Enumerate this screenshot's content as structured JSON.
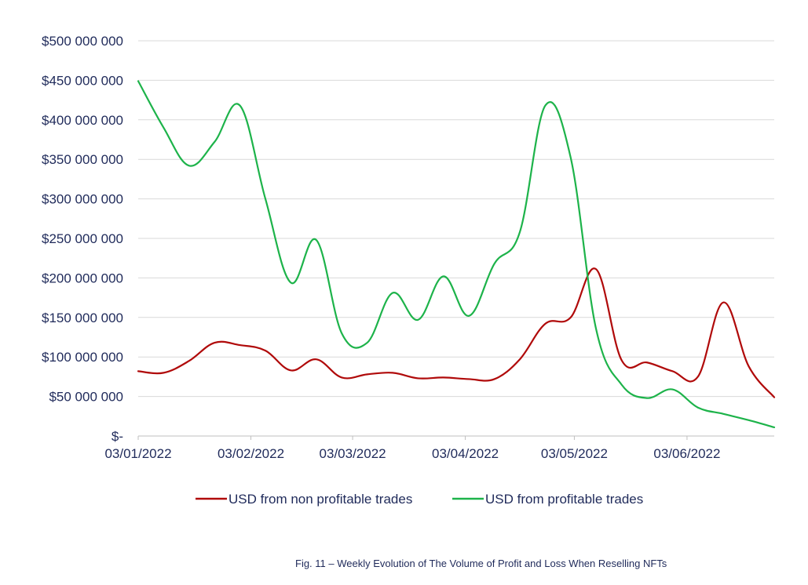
{
  "caption": "Fig. 11 – Weekly Evolution of The Volume of Profit and Loss When Reselling NFTs",
  "chart_data": {
    "type": "line",
    "title": "",
    "xlabel": "",
    "ylabel": "",
    "ylim": [
      0,
      500000000
    ],
    "yticks": [
      0,
      50000000,
      100000000,
      150000000,
      200000000,
      250000000,
      300000000,
      350000000,
      400000000,
      450000000,
      500000000
    ],
    "ytick_labels": [
      "$-",
      "$50 000 000",
      "$100 000 000",
      "$150 000 000",
      "$200 000 000",
      "$250 000 000",
      "$300 000 000",
      "$350 000 000",
      "$400 000 000",
      "$450 000 000",
      "$500 000 000"
    ],
    "xlim": [
      "2022-01-03",
      "2022-06-27"
    ],
    "xticks": [
      "2022-01-03",
      "2022-02-03",
      "2022-03-03",
      "2022-04-03",
      "2022-05-03",
      "2022-06-03"
    ],
    "xtick_labels": [
      "03/01/2022",
      "03/02/2022",
      "03/03/2022",
      "03/04/2022",
      "03/05/2022",
      "03/06/2022"
    ],
    "grid": "horizontal",
    "legend_position": "bottom",
    "series": [
      {
        "name": "USD from non profitable trades",
        "color": "#b00a0a",
        "points": [
          [
            "2022-01-03",
            82000000
          ],
          [
            "2022-01-10",
            80000000
          ],
          [
            "2022-01-17",
            95000000
          ],
          [
            "2022-01-24",
            118000000
          ],
          [
            "2022-01-31",
            115000000
          ],
          [
            "2022-02-07",
            108000000
          ],
          [
            "2022-02-14",
            83000000
          ],
          [
            "2022-02-21",
            97000000
          ],
          [
            "2022-02-28",
            74000000
          ],
          [
            "2022-03-07",
            78000000
          ],
          [
            "2022-03-14",
            80000000
          ],
          [
            "2022-03-21",
            73000000
          ],
          [
            "2022-03-28",
            74000000
          ],
          [
            "2022-04-04",
            72000000
          ],
          [
            "2022-04-11",
            72000000
          ],
          [
            "2022-04-18",
            97000000
          ],
          [
            "2022-04-25",
            142000000
          ],
          [
            "2022-05-02",
            150000000
          ],
          [
            "2022-05-09",
            211000000
          ],
          [
            "2022-05-16",
            96000000
          ],
          [
            "2022-05-23",
            93000000
          ],
          [
            "2022-05-30",
            82000000
          ],
          [
            "2022-06-06",
            75000000
          ],
          [
            "2022-06-13",
            169000000
          ],
          [
            "2022-06-20",
            88000000
          ],
          [
            "2022-06-27",
            49000000
          ]
        ]
      },
      {
        "name": "USD from profitable trades",
        "color": "#1db34a",
        "points": [
          [
            "2022-01-03",
            449000000
          ],
          [
            "2022-01-10",
            390000000
          ],
          [
            "2022-01-17",
            342000000
          ],
          [
            "2022-01-24",
            372000000
          ],
          [
            "2022-01-31",
            418000000
          ],
          [
            "2022-02-07",
            300000000
          ],
          [
            "2022-02-14",
            194000000
          ],
          [
            "2022-02-21",
            248000000
          ],
          [
            "2022-02-28",
            130000000
          ],
          [
            "2022-03-07",
            118000000
          ],
          [
            "2022-03-14",
            181000000
          ],
          [
            "2022-03-21",
            147000000
          ],
          [
            "2022-03-28",
            202000000
          ],
          [
            "2022-04-04",
            152000000
          ],
          [
            "2022-04-11",
            218000000
          ],
          [
            "2022-04-18",
            258000000
          ],
          [
            "2022-04-25",
            418000000
          ],
          [
            "2022-05-02",
            352000000
          ],
          [
            "2022-05-09",
            135000000
          ],
          [
            "2022-05-16",
            65000000
          ],
          [
            "2022-05-23",
            48000000
          ],
          [
            "2022-05-30",
            59000000
          ],
          [
            "2022-06-06",
            36000000
          ],
          [
            "2022-06-13",
            28000000
          ],
          [
            "2022-06-20",
            20000000
          ],
          [
            "2022-06-27",
            11000000
          ]
        ]
      }
    ]
  }
}
